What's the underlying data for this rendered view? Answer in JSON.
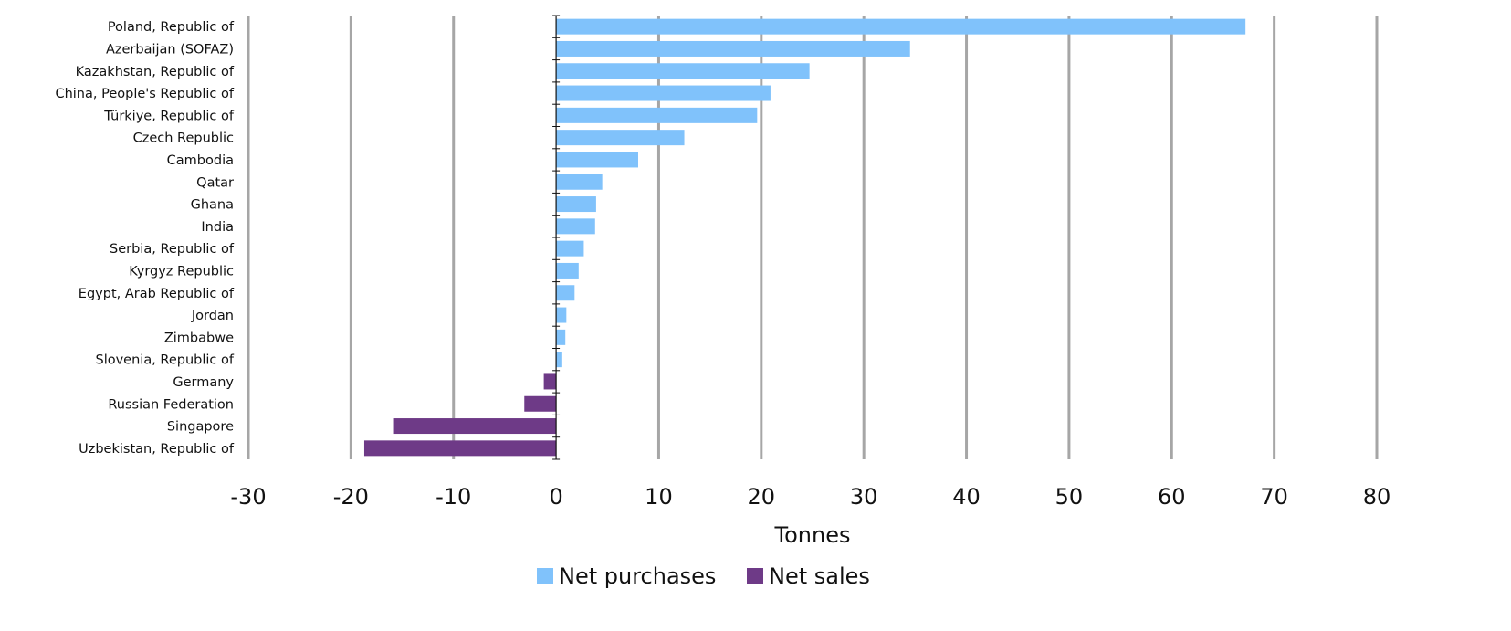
{
  "chart_data": {
    "type": "bar",
    "orientation": "horizontal",
    "categories": [
      "Poland, Republic of",
      "Azerbaijan (SOFAZ)",
      "Kazakhstan, Republic of",
      "China, People's Republic of",
      "Türkiye, Republic of",
      "Czech Republic",
      "Cambodia",
      "Qatar",
      "Ghana",
      "India",
      "Serbia, Republic of",
      "Kyrgyz Republic",
      "Egypt, Arab Republic of",
      "Jordan",
      "Zimbabwe",
      "Slovenia, Republic of",
      "Germany",
      "Russian Federation",
      "Singapore",
      "Uzbekistan, Republic of"
    ],
    "values": [
      67.2,
      34.5,
      24.7,
      20.9,
      19.6,
      12.5,
      8.0,
      4.5,
      3.9,
      3.8,
      2.7,
      2.2,
      1.8,
      1.0,
      0.9,
      0.6,
      -1.2,
      -3.1,
      -15.8,
      -18.7
    ],
    "xlabel": "Tonnes",
    "ylabel": "",
    "xlim": [
      -30,
      80
    ],
    "xticks": [
      "-30",
      "-20",
      "-10",
      "0",
      "10",
      "20",
      "30",
      "40",
      "50",
      "60",
      "70",
      "80"
    ],
    "tick_values": [
      -30,
      -20,
      -10,
      0,
      10,
      20,
      30,
      40,
      50,
      60,
      70,
      80
    ],
    "grid": "vertical",
    "legend_position": "bottom",
    "series": [
      {
        "name": "Net purchases",
        "color": "#80c2fb"
      },
      {
        "name": "Net sales",
        "color": "#6e3a87"
      }
    ]
  }
}
